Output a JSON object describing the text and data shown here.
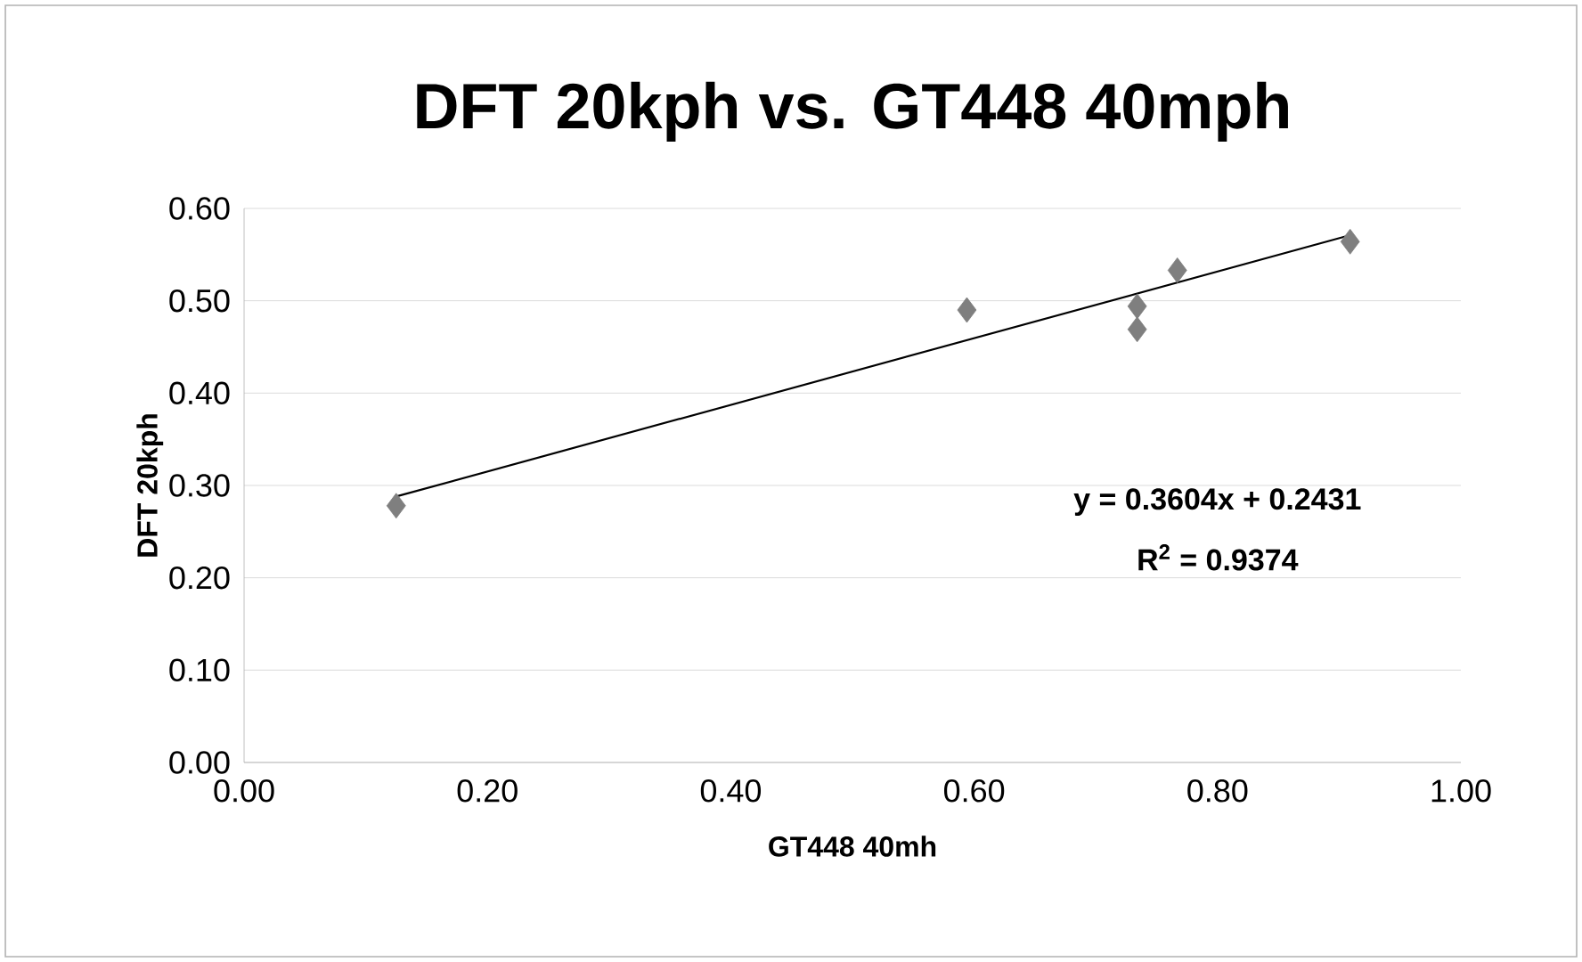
{
  "chart_data": {
    "type": "scatter",
    "title": "DFT 20kph vs. GT448 40mph",
    "xlabel": "GT448 40mh",
    "ylabel": "DFT 20kph",
    "x": [
      0.125,
      0.594,
      0.734,
      0.734,
      0.767,
      0.909
    ],
    "series": [
      {
        "color": "#7f7f7f",
        "values": [
          0.278,
          0.49,
          0.494,
          0.469,
          0.533,
          0.564
        ],
        "marker": "diamond"
      },
      {
        "type": "line",
        "color": "#000000",
        "x": [
          0.125,
          0.909
        ],
        "values": [
          0.288,
          0.571
        ],
        "marker": "none",
        "line_style": "solid"
      }
    ],
    "annotations": [
      "y = 0.3604x + 0.2431",
      "R$^{2}$ = 0.9374"
    ],
    "xlim": [
      0,
      1
    ],
    "ylim": [
      0,
      0.6
    ],
    "xticks": [
      {
        "value": 0,
        "label": "0.00"
      },
      {
        "value": 0.2,
        "label": "0.20"
      },
      {
        "value": 0.4,
        "label": "0.40"
      },
      {
        "value": 0.6,
        "label": "0.60"
      },
      {
        "value": 0.8,
        "label": "0.80"
      },
      {
        "value": 1,
        "label": "1.00"
      }
    ],
    "yticks": [
      {
        "value": 0,
        "label": "0.00"
      },
      {
        "value": 0.1,
        "label": "0.10"
      },
      {
        "value": 0.2,
        "label": "0.20"
      },
      {
        "value": 0.3,
        "label": "0.30"
      },
      {
        "value": 0.4,
        "label": "0.40"
      },
      {
        "value": 0.5,
        "label": "0.50"
      },
      {
        "value": 0.6,
        "label": "0.60"
      }
    ],
    "grid": "y"
  }
}
